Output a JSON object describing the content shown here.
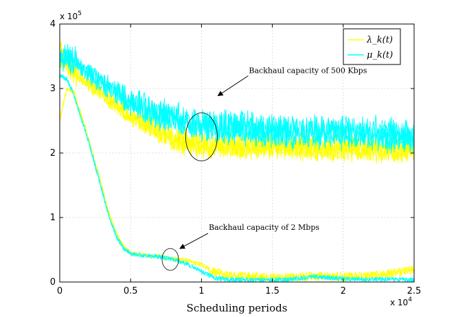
{
  "chart_data": {
    "type": "line",
    "title": "",
    "xlabel": "Scheduling periods",
    "ylabel": "",
    "xlim": [
      0,
      25000
    ],
    "ylim": [
      0,
      400000
    ],
    "x_multiplier_label": "x 10",
    "x_multiplier_exp": "4",
    "y_multiplier_label": "x 10",
    "y_multiplier_exp": "5",
    "x_ticks": [
      0,
      0.5,
      1,
      1.5,
      2,
      2.5
    ],
    "x_tick_labels": [
      "0",
      "0.5",
      "1",
      "1.5",
      "2",
      "2.5"
    ],
    "y_ticks": [
      0,
      1,
      2,
      3,
      4
    ],
    "y_tick_labels": [
      "0",
      "1",
      "2",
      "3",
      "4"
    ],
    "grid": true,
    "legend_position": "top-right",
    "series": [
      {
        "name": "λk(t) (500 Kbps)",
        "legend": "λ_k(t)",
        "color": "#ffff00",
        "group": "500k",
        "x": [
          0,
          500,
          1000,
          2000,
          3000,
          4000,
          5000,
          6000,
          7000,
          8000,
          9000,
          10000,
          12000,
          14000,
          16000,
          18000,
          20000,
          22000,
          25000
        ],
        "y": [
          360000,
          342000,
          330000,
          311000,
          294000,
          279000,
          264000,
          250000,
          238000,
          230000,
          224000,
          220000,
          218000,
          217000,
          216000,
          215000,
          215000,
          214000,
          212000
        ]
      },
      {
        "name": "μk(t) (500 Kbps)",
        "legend": "μ_k(t)",
        "color": "#00ffff",
        "group": "500k",
        "x": [
          0,
          500,
          1000,
          2000,
          3000,
          4000,
          5000,
          6000,
          7000,
          8000,
          9000,
          10000,
          12000,
          14000,
          16000,
          18000,
          20000,
          22000,
          25000
        ],
        "y": [
          340000,
          345000,
          335000,
          318000,
          302000,
          288000,
          274000,
          262000,
          252000,
          244000,
          238000,
          234000,
          229000,
          226000,
          224000,
          223000,
          222000,
          220000,
          216000
        ]
      },
      {
        "name": "λk(t) (2 Mbps)",
        "color": "#ffff00",
        "group": "2M",
        "x": [
          0,
          500,
          1000,
          1500,
          2000,
          2500,
          3000,
          3500,
          4000,
          4500,
          5000,
          6000,
          7000,
          8000,
          9000,
          10000,
          11000,
          12000,
          14000,
          16000,
          18000,
          20000,
          22000,
          24000,
          25000
        ],
        "y": [
          250000,
          300000,
          295000,
          260000,
          225000,
          185000,
          145000,
          105000,
          75000,
          55000,
          45000,
          42000,
          40000,
          36000,
          33000,
          27000,
          15000,
          9000,
          8000,
          7000,
          9000,
          8000,
          10000,
          15000,
          20000
        ]
      },
      {
        "name": "μk(t) (2 Mbps)",
        "color": "#00ffff",
        "group": "2M",
        "x": [
          0,
          500,
          1000,
          1500,
          2000,
          2500,
          3000,
          3500,
          4000,
          4500,
          5000,
          6000,
          7000,
          8000,
          9000,
          10000,
          11000,
          12000,
          14000,
          16000,
          18000,
          20000,
          22000,
          24000,
          25000
        ],
        "y": [
          320000,
          315000,
          290000,
          255000,
          220000,
          180000,
          140000,
          100000,
          70000,
          52000,
          44000,
          41000,
          39000,
          35000,
          28000,
          16000,
          6000,
          4000,
          3000,
          4000,
          8000,
          5000,
          4000,
          4000,
          3000
        ]
      }
    ],
    "annotations": [
      {
        "text": "Backhaul capacity of 500 Kbps",
        "target_x": 10000,
        "target_y": 225000
      },
      {
        "text": "Backhaul capacity of 2 Mbps",
        "target_x": 7800,
        "target_y": 35000
      }
    ]
  }
}
